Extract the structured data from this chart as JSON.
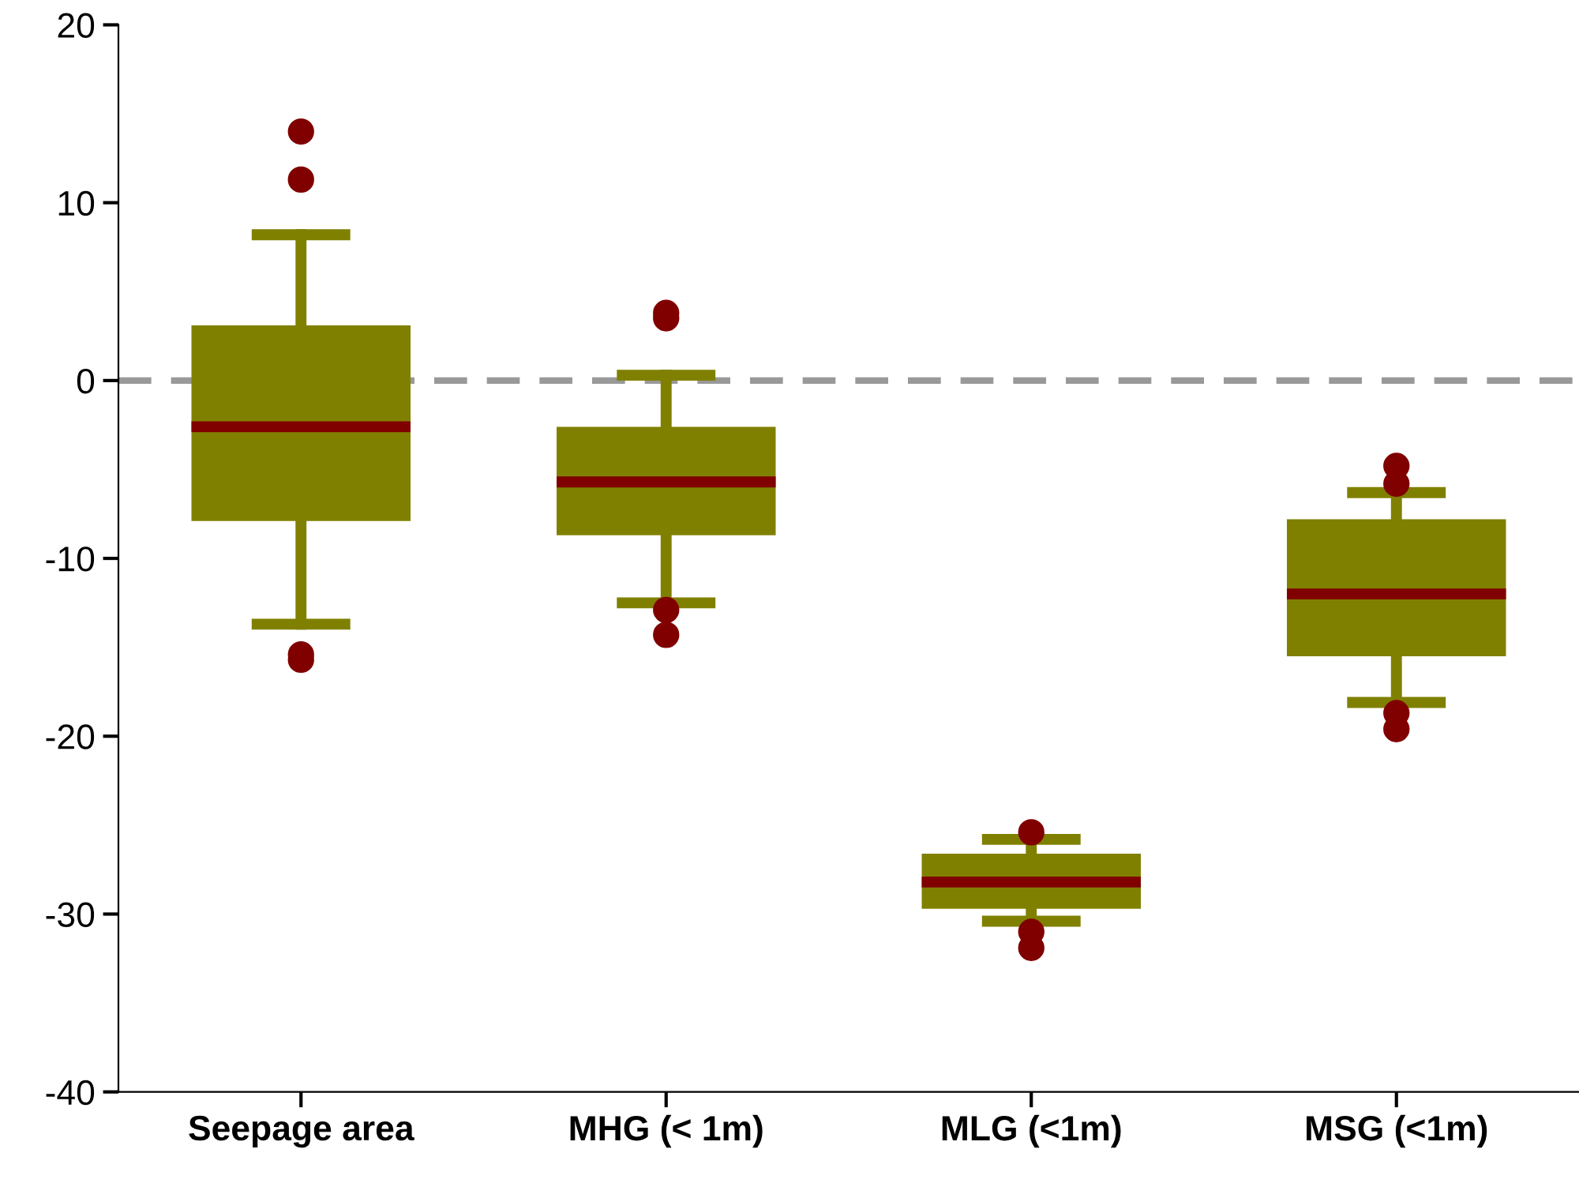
{
  "chart_data": {
    "type": "box",
    "categories": [
      "Seepage area",
      "MHG (< 1m)",
      "MLG (<1m)",
      "MSG (<1m)"
    ],
    "boxes": [
      {
        "low": -13.7,
        "q1": -7.9,
        "median": -2.6,
        "q3": 3.1,
        "high": 8.2,
        "outliers": [
          14.0,
          11.3,
          -15.4,
          -15.7
        ]
      },
      {
        "low": -12.5,
        "q1": -8.7,
        "median": -5.7,
        "q3": -2.6,
        "high": 0.3,
        "outliers": [
          3.8,
          3.5,
          -12.9,
          -14.3
        ]
      },
      {
        "low": -30.4,
        "q1": -29.7,
        "median": -28.2,
        "q3": -26.6,
        "high": -25.8,
        "outliers": [
          -25.4,
          -31.0,
          -31.9
        ]
      },
      {
        "low": -18.1,
        "q1": -15.5,
        "median": -12.0,
        "q3": -7.8,
        "high": -6.3,
        "outliers": [
          -4.8,
          -5.8,
          -18.7,
          -19.6
        ]
      }
    ],
    "color": "#808000",
    "ylim": [
      -40,
      20
    ],
    "yticks": [
      -40,
      -30,
      -20,
      -10,
      0,
      10,
      20
    ],
    "ref_lines": [
      {
        "axis": "y",
        "value": 0,
        "color": "#999999",
        "line_style": "dashed"
      }
    ],
    "grid": false,
    "legend": false
  }
}
